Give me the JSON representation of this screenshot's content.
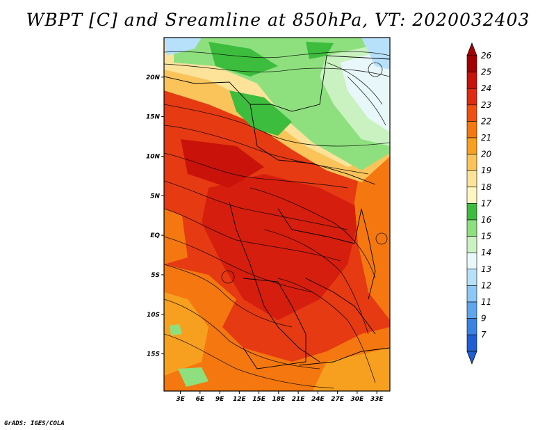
{
  "title": "WBPT [C] and Sreamline at 850hPa, VT: 2020032403",
  "footer": "GrADS: IGES/COLA",
  "map": {
    "lat_labels": [
      "20N",
      "15N",
      "10N",
      "5N",
      "EQ",
      "5S",
      "10S",
      "15S"
    ],
    "lat_values": [
      20,
      15,
      10,
      5,
      0,
      -5,
      -10,
      -15
    ],
    "lon_labels": [
      "3E",
      "6E",
      "9E",
      "12E",
      "15E",
      "18E",
      "21E",
      "24E",
      "27E",
      "30E",
      "33E"
    ],
    "lon_values": [
      3,
      6,
      9,
      12,
      15,
      18,
      21,
      24,
      27,
      30,
      33
    ],
    "lon_range": [
      0.5,
      35
    ],
    "lat_range": [
      -19.7,
      25
    ]
  },
  "colorbar": {
    "labels": [
      "26",
      "25",
      "24",
      "23",
      "22",
      "21",
      "20",
      "19",
      "18",
      "17",
      "16",
      "15",
      "14",
      "13",
      "12",
      "11",
      "9",
      "7"
    ],
    "colors": [
      "#a50000",
      "#c8120a",
      "#e12a10",
      "#f04f10",
      "#f4780f",
      "#f7a020",
      "#fac45a",
      "#fde39a",
      "#fff6c2",
      "#3dbd3d",
      "#8ee07f",
      "#c9f2c0",
      "#e8f8fa",
      "#b7e0fa",
      "#8cc8f5",
      "#5ea6ee",
      "#3a82e4",
      "#1e5fd6"
    ],
    "top_color": "#a50000",
    "bottom_color": "#1e5fd6"
  }
}
